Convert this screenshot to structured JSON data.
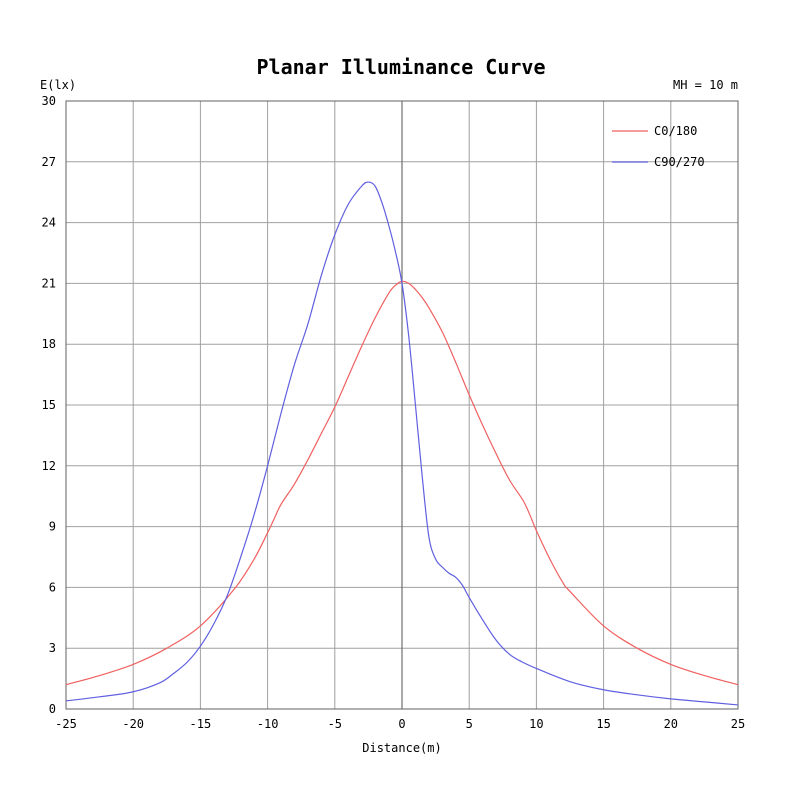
{
  "chart_data": {
    "type": "line",
    "title": "Planar Illuminance Curve",
    "ylabel": "E(lx)",
    "xlabel": "Distance(m)",
    "annotation": "MH = 10 m",
    "xlim": [
      -25,
      25
    ],
    "ylim": [
      0,
      30
    ],
    "xticks": [
      -25,
      -20,
      -15,
      -10,
      -5,
      0,
      5,
      10,
      15,
      20,
      25
    ],
    "yticks": [
      0,
      3,
      6,
      9,
      12,
      15,
      18,
      21,
      24,
      27,
      30
    ],
    "grid": true,
    "legend_position": "top-right",
    "series": [
      {
        "name": "C0/180",
        "color": "#f06060",
        "x": [
          -25,
          -22.5,
          -20,
          -17.5,
          -15,
          -12.5,
          -11,
          -10,
          -9.5,
          -9,
          -8,
          -7,
          -6,
          -5,
          -4,
          -3,
          -2,
          -1,
          -0.5,
          0,
          0.5,
          1,
          1.5,
          2,
          3,
          4,
          5,
          6,
          7,
          8,
          9,
          9.5,
          10,
          11,
          12,
          12.5,
          15,
          17.5,
          20,
          22.5,
          25
        ],
        "y": [
          1.2,
          1.65,
          2.2,
          3.0,
          4.1,
          5.9,
          7.4,
          8.7,
          9.4,
          10.1,
          11.1,
          12.3,
          13.6,
          14.9,
          16.4,
          17.9,
          19.3,
          20.5,
          20.9,
          21.1,
          21.0,
          20.7,
          20.3,
          19.8,
          18.6,
          17.1,
          15.5,
          14.0,
          12.6,
          11.3,
          10.3,
          9.6,
          8.8,
          7.4,
          6.2,
          5.8,
          4.1,
          3.0,
          2.2,
          1.65,
          1.2
        ]
      },
      {
        "name": "C90/270",
        "color": "#6060e0",
        "x": [
          -25,
          -22.5,
          -20,
          -18,
          -17,
          -16,
          -15,
          -14,
          -13,
          -12,
          -11,
          -10,
          -9,
          -8,
          -7,
          -6,
          -5,
          -4,
          -3,
          -2.5,
          -2,
          -1.5,
          -1,
          -0.5,
          0,
          0.5,
          1,
          1.5,
          2,
          2.5,
          3,
          3.5,
          4,
          4.5,
          5,
          6,
          7,
          8,
          9,
          10,
          12.5,
          15,
          17.5,
          20,
          22.5,
          25
        ],
        "y": [
          0.4,
          0.6,
          0.85,
          1.3,
          1.75,
          2.3,
          3.1,
          4.2,
          5.6,
          7.5,
          9.6,
          12.0,
          14.6,
          17.0,
          19.0,
          21.4,
          23.4,
          24.9,
          25.8,
          26.0,
          25.8,
          25.0,
          23.9,
          22.6,
          21.0,
          18.4,
          15.0,
          11.5,
          8.5,
          7.4,
          7.0,
          6.7,
          6.5,
          6.1,
          5.5,
          4.4,
          3.4,
          2.7,
          2.3,
          2.0,
          1.35,
          0.95,
          0.7,
          0.5,
          0.35,
          0.2
        ]
      }
    ]
  }
}
